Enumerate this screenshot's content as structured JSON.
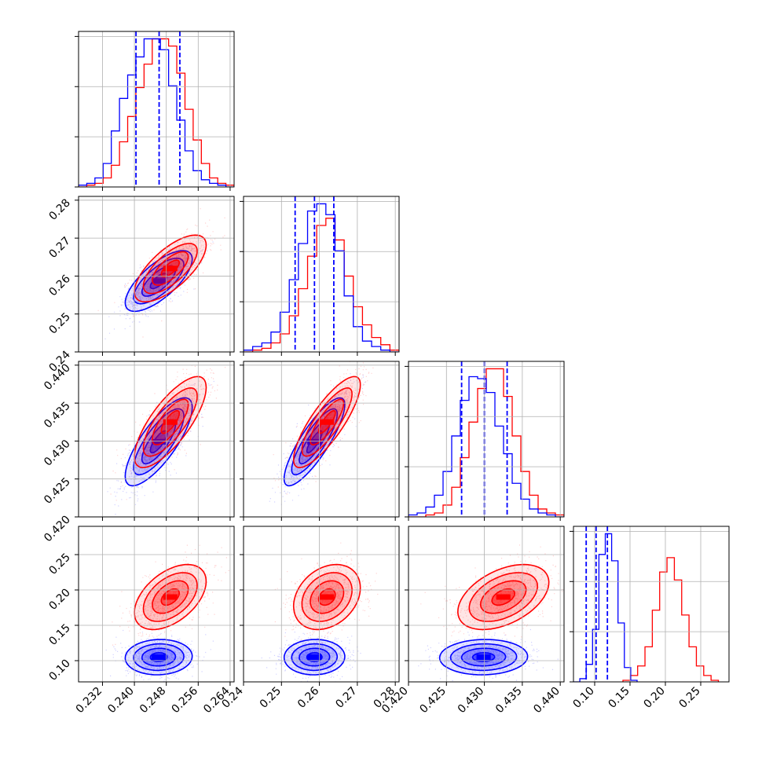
{
  "chart_data": {
    "type": "corner",
    "colors": {
      "model_a": "#0000ff",
      "model_b": "#ff0000"
    },
    "grid": true,
    "params": [
      {
        "range": [
          0.226,
          0.265
        ],
        "ticks": [
          "0.232",
          "0.240",
          "0.248",
          "0.256",
          "0.264"
        ],
        "quantiles": [
          0.2404,
          0.2462,
          0.2514
        ],
        "hist_blue": [
          1,
          2,
          5,
          13,
          31,
          49,
          62,
          72,
          82,
          82,
          76,
          56,
          37,
          20,
          9,
          4,
          2,
          1,
          0
        ],
        "hist_red": [
          0,
          1,
          2,
          5,
          12,
          25,
          39,
          55,
          68,
          82,
          82,
          78,
          63,
          43,
          26,
          13,
          5,
          2,
          1
        ]
      },
      {
        "range": [
          0.24,
          0.281
        ],
        "ticks": [
          "0.24",
          "0.25",
          "0.26",
          "0.27",
          "0.28"
        ],
        "quantiles": [
          0.2536,
          0.2587,
          0.2638
        ],
        "hist_blue": [
          1,
          3,
          5,
          11,
          22,
          40,
          60,
          78,
          82,
          76,
          56,
          31,
          14,
          6,
          3,
          1,
          0
        ],
        "hist_red": [
          0,
          1,
          2,
          5,
          10,
          20,
          35,
          53,
          70,
          74,
          62,
          42,
          25,
          15,
          8,
          4,
          1
        ]
      },
      {
        "range": [
          0.42,
          0.4405
        ],
        "ticks": [
          "0.420",
          "0.425",
          "0.430",
          "0.435",
          "0.440"
        ],
        "quantiles": [
          0.427,
          0.43,
          0.433
        ],
        "hist_blue": [
          1,
          2,
          5,
          11,
          23,
          41,
          59,
          71,
          70,
          63,
          46,
          32,
          17,
          9,
          4,
          2,
          1,
          0
        ],
        "hist_red": [
          0,
          0,
          1,
          2,
          6,
          15,
          30,
          48,
          65,
          75,
          75,
          61,
          41,
          23,
          11,
          4,
          2,
          1
        ]
      },
      {
        "range": [
          0.07,
          0.29
        ],
        "ticks": [
          "0.10",
          "0.15",
          "0.20",
          "0.25"
        ],
        "quantiles": [
          0.088,
          0.102,
          0.118
        ],
        "hist_blue": [
          0,
          2,
          11,
          33,
          80,
          93,
          76,
          37,
          9,
          1
        ],
        "hist_blue_range": [
          0.07,
          0.16
        ],
        "hist_red": [
          1,
          4,
          10,
          22,
          45,
          69,
          78,
          64,
          42,
          22,
          10,
          4,
          1
        ],
        "hist_red_range": [
          0.14,
          0.275
        ]
      }
    ],
    "y_ticks": {
      "1": [
        "0.24",
        "0.25",
        "0.26",
        "0.27",
        "0.28"
      ],
      "2": [
        "0.420",
        "0.425",
        "0.430",
        "0.435",
        "0.440"
      ],
      "3": [
        "0.10",
        "0.15",
        "0.20",
        "0.25"
      ]
    },
    "tick_values": [
      [
        0.232,
        0.24,
        0.248,
        0.256,
        0.264
      ],
      [
        0.24,
        0.25,
        0.26,
        0.27,
        0.28
      ],
      [
        0.42,
        0.425,
        0.43,
        0.435,
        0.44
      ],
      [
        0.1,
        0.15,
        0.2,
        0.25
      ]
    ],
    "distributions": {
      "blue": {
        "mean": [
          0.2461,
          0.2587,
          0.4299,
          0.105
        ],
        "sd": [
          0.0042,
          0.004,
          0.0029,
          0.0125
        ],
        "corr": [
          [
            1,
            0.72,
            0.78,
            0.05
          ],
          [
            0.72,
            1,
            0.84,
            0.03
          ],
          [
            0.78,
            0.84,
            1,
            0.04
          ],
          [
            0.05,
            0.03,
            0.04,
            1
          ]
        ]
      },
      "red": {
        "mean": [
          0.249,
          0.262,
          0.4325,
          0.19
        ],
        "sd": [
          0.0045,
          0.0044,
          0.003,
          0.023
        ],
        "corr": [
          [
            1,
            0.7,
            0.76,
            0.48
          ],
          [
            0.7,
            1,
            0.82,
            0.28
          ],
          [
            0.76,
            0.82,
            1,
            0.45
          ],
          [
            0.48,
            0.28,
            0.45,
            1
          ]
        ]
      }
    }
  }
}
